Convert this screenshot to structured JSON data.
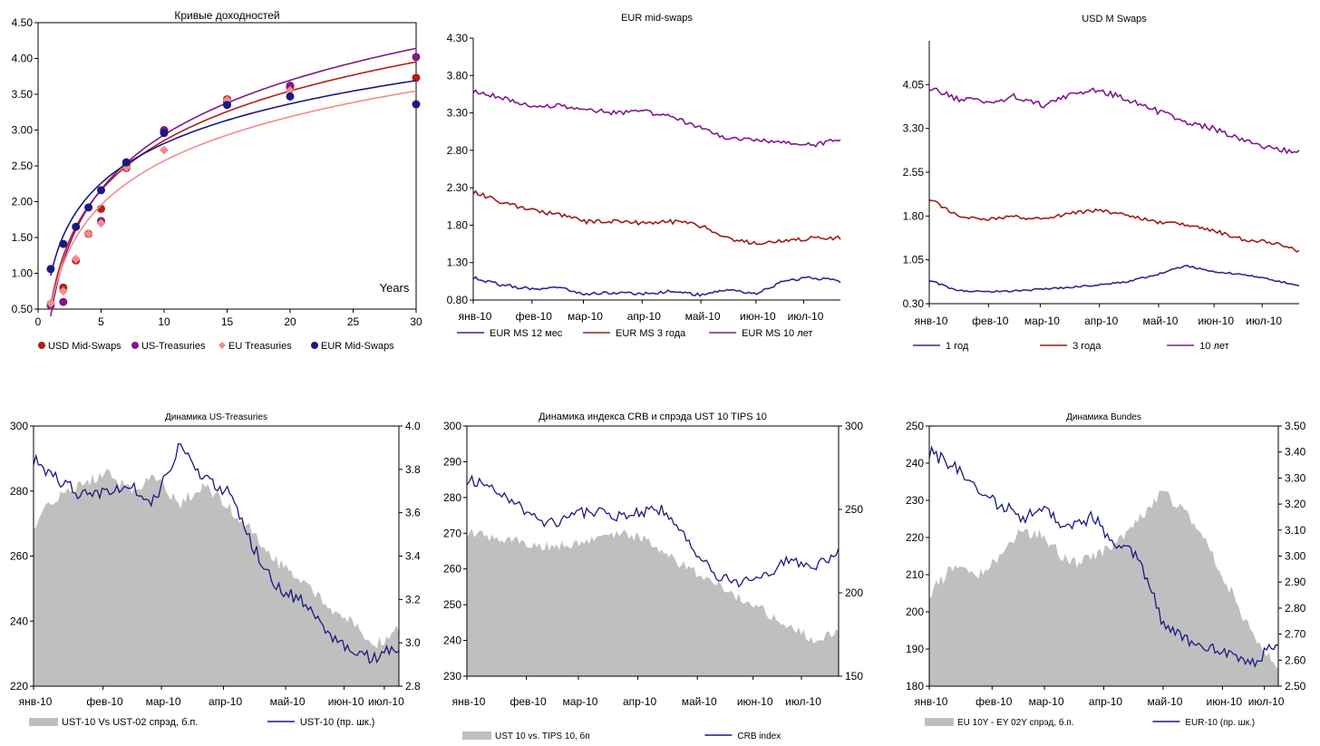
{
  "chart_data": [
    {
      "type": "scatter",
      "title": "Кривые доходностей",
      "xlabel": "Years",
      "ylabel": "",
      "xlim": [
        0,
        30
      ],
      "ylim": [
        0.5,
        4.5
      ],
      "x_ticks": [
        "0",
        "5",
        "10",
        "15",
        "20",
        "25",
        "30"
      ],
      "y_ticks": [
        "0.50",
        "1.00",
        "1.50",
        "2.00",
        "2.50",
        "3.00",
        "3.50",
        "4.00",
        "4.50"
      ],
      "legend_position": "bottom",
      "series": [
        {
          "name": "USD Mid-Swaps",
          "color": "#b0201a",
          "points": [
            [
              1,
              0.57
            ],
            [
              2,
              0.8
            ],
            [
              3,
              1.18
            ],
            [
              4,
              1.55
            ],
            [
              5,
              1.9
            ],
            [
              7,
              2.47
            ],
            [
              10,
              2.98
            ],
            [
              15,
              3.43
            ],
            [
              20,
              3.6
            ],
            [
              30,
              3.73
            ]
          ],
          "trend": {
            "a": 0.55,
            "b": 1.0
          }
        },
        {
          "name": "US-Treasuries",
          "color": "#7f1a8a",
          "points": [
            [
              1,
              0.55
            ],
            [
              2,
              0.6
            ],
            [
              5,
              1.73
            ],
            [
              7,
              2.5
            ],
            [
              10,
              3.0
            ],
            [
              15,
              3.39
            ],
            [
              20,
              3.62
            ],
            [
              30,
              4.02
            ]
          ],
          "trend": {
            "a": 0.4,
            "b": 1.1
          }
        },
        {
          "name": "EU Treasuries",
          "color": "#f28c8c",
          "points": [
            [
              1,
              0.58
            ],
            [
              2,
              0.75
            ],
            [
              3,
              1.2
            ],
            [
              4,
              1.55
            ],
            [
              5,
              1.7
            ],
            [
              7,
              2.48
            ],
            [
              10,
              2.72
            ],
            [
              15,
              3.42
            ],
            [
              20,
              3.55
            ]
          ],
          "trend": {
            "a": 0.52,
            "b": 0.89
          }
        },
        {
          "name": "EUR Mid-Swaps",
          "color": "#1a1a80",
          "points": [
            [
              1,
              1.06
            ],
            [
              2,
              1.41
            ],
            [
              3,
              1.65
            ],
            [
              4,
              1.92
            ],
            [
              5,
              2.16
            ],
            [
              7,
              2.55
            ],
            [
              10,
              2.96
            ],
            [
              15,
              3.35
            ],
            [
              20,
              3.47
            ],
            [
              30,
              3.36
            ]
          ],
          "trend": {
            "a": 0.97,
            "b": 0.8
          }
        }
      ]
    },
    {
      "type": "line",
      "title": "EUR mid-swaps",
      "ylim": [
        0.8,
        4.3
      ],
      "y_ticks": [
        "0.80",
        "1.30",
        "1.80",
        "2.30",
        "2.80",
        "3.30",
        "3.80",
        "4.30"
      ],
      "x_ticks": [
        "янв-10",
        "фев-10",
        "мар-10",
        "апр-10",
        "май-10",
        "июн-10",
        "июл-10"
      ],
      "legend_position": "bottom",
      "n_points": 150,
      "series": [
        {
          "name": "EUR MS 12 мес",
          "color": "#2b2b8c",
          "anchors": [
            1.1,
            1.0,
            0.95,
            0.97,
            0.88,
            0.9,
            0.88,
            0.92,
            0.87,
            0.95,
            0.88,
            1.05,
            1.1,
            1.05
          ],
          "noise": 0.02
        },
        {
          "name": "EUR MS 3 года",
          "color": "#a01c1c",
          "anchors": [
            2.25,
            2.1,
            2.0,
            1.95,
            1.85,
            1.86,
            1.82,
            1.85,
            1.8,
            1.62,
            1.55,
            1.6,
            1.62,
            1.63
          ],
          "noise": 0.03
        },
        {
          "name": "EUR MS 10 лет",
          "color": "#7d1c8a",
          "anchors": [
            3.6,
            3.5,
            3.4,
            3.4,
            3.35,
            3.3,
            3.32,
            3.25,
            3.1,
            2.95,
            2.95,
            2.9,
            2.87,
            2.95
          ],
          "noise": 0.03
        }
      ]
    },
    {
      "type": "line",
      "title": "USD M Swaps",
      "ylim": [
        0.3,
        4.8
      ],
      "y_ticks": [
        "0.30",
        "1.05",
        "1.80",
        "2.55",
        "3.30",
        "4.05"
      ],
      "x_ticks": [
        "янв-10",
        "фев-10",
        "мар-10",
        "апр-10",
        "май-10",
        "июн-10",
        "июл-10"
      ],
      "legend_position": "bottom",
      "n_points": 150,
      "series": [
        {
          "name": "1 год",
          "color": "#2b2b8c",
          "anchors": [
            0.7,
            0.52,
            0.5,
            0.52,
            0.55,
            0.58,
            0.62,
            0.68,
            0.8,
            0.95,
            0.85,
            0.8,
            0.72,
            0.6
          ],
          "noise": 0.015
        },
        {
          "name": "3 года",
          "color": "#a01c1c",
          "anchors": [
            2.1,
            1.8,
            1.75,
            1.78,
            1.75,
            1.85,
            1.9,
            1.8,
            1.7,
            1.65,
            1.55,
            1.4,
            1.35,
            1.2
          ],
          "noise": 0.03
        },
        {
          "name": "10 лет",
          "color": "#7d1c8a",
          "anchors": [
            4.0,
            3.8,
            3.75,
            3.85,
            3.7,
            3.9,
            3.95,
            3.8,
            3.6,
            3.4,
            3.3,
            3.1,
            2.95,
            2.9
          ],
          "noise": 0.05
        }
      ]
    },
    {
      "type": "area",
      "title": "Динамика US-Treasuries",
      "ylim": [
        220,
        300
      ],
      "y_ticks": [
        "220",
        "240",
        "260",
        "280",
        "300"
      ],
      "y2lim": [
        2.8,
        4.0
      ],
      "y2_ticks": [
        "2.8",
        "3.0",
        "3.2",
        "3.4",
        "3.6",
        "3.8",
        "4.0"
      ],
      "x_ticks": [
        "янв-10",
        "фев-10",
        "мар-10",
        "апр-10",
        "май-10",
        "июн-10",
        "июл-10"
      ],
      "legend_position": "bottom",
      "n_points": 150,
      "series": [
        {
          "name": "UST-10 Vs UST-02 спрэд, б.п.",
          "color": "#bfbfbf",
          "kind": "area",
          "axis": "left",
          "anchors": [
            270,
            278,
            282,
            285,
            280,
            284,
            276,
            282,
            275,
            268,
            258,
            252,
            245,
            240,
            232,
            238
          ],
          "noise": 2.0
        },
        {
          "name": "UST-10 (пр. шк.)",
          "color": "#1a1a7e",
          "kind": "line",
          "axis": "right",
          "anchors": [
            3.85,
            3.75,
            3.68,
            3.7,
            3.72,
            3.65,
            3.92,
            3.75,
            3.7,
            3.45,
            3.25,
            3.2,
            3.05,
            2.95,
            2.93,
            2.98
          ],
          "noise": 0.03
        }
      ]
    },
    {
      "type": "area",
      "title": "Динамика индекса CRB и спрэда UST 10 TIPS 10",
      "ylim": [
        230,
        300
      ],
      "y_ticks": [
        "230",
        "240",
        "250",
        "260",
        "270",
        "280",
        "290",
        "300"
      ],
      "y2lim": [
        150,
        300
      ],
      "y2_ticks": [
        "150",
        "200",
        "250",
        "300"
      ],
      "x_ticks": [
        "янв-10",
        "фев-10",
        "мар-10",
        "апр-10",
        "май-10",
        "июн-10",
        "июл-10"
      ],
      "legend_position": "bottom",
      "n_points": 150,
      "series": [
        {
          "name": "UST 10 vs. TIPS 10, бп",
          "color": "#bfbfbf",
          "kind": "area",
          "axis": "left",
          "anchors": [
            270,
            269,
            268,
            266,
            267,
            268,
            270,
            269,
            264,
            260,
            256,
            252,
            248,
            244,
            240,
            242
          ],
          "noise": 1.5
        },
        {
          "name": "CRB index",
          "color": "#1a1a7e",
          "kind": "line",
          "axis": "right",
          "anchors": [
            268,
            262,
            255,
            240,
            245,
            250,
            245,
            248,
            250,
            230,
            210,
            205,
            210,
            220,
            215,
            225
          ],
          "noise": 3.5
        }
      ]
    },
    {
      "type": "area",
      "title": "Динамика Bundes",
      "ylim": [
        180,
        250
      ],
      "y_ticks": [
        "180",
        "190",
        "200",
        "210",
        "220",
        "230",
        "240",
        "250"
      ],
      "y2lim": [
        2.5,
        3.5
      ],
      "y2_ticks": [
        "2.50",
        "2.60",
        "2.70",
        "2.80",
        "2.90",
        "3.00",
        "3.10",
        "3.20",
        "3.30",
        "3.40",
        "3.50"
      ],
      "x_ticks": [
        "янв-10",
        "фев-10",
        "мар-10",
        "апр-10",
        "май-10",
        "июн-10",
        "июл-10"
      ],
      "legend_position": "bottom",
      "n_points": 150,
      "series": [
        {
          "name": "EU 10Y - EY 02Y спрэд, б.п.",
          "color": "#bfbfbf",
          "kind": "area",
          "axis": "left",
          "anchors": [
            205,
            212,
            210,
            215,
            222,
            220,
            213,
            215,
            218,
            225,
            232,
            228,
            218,
            205,
            192,
            186
          ],
          "noise": 1.8
        },
        {
          "name": "EUR-10 (пр. шк.)",
          "color": "#1a1a7e",
          "kind": "line",
          "axis": "right",
          "anchors": [
            3.4,
            3.35,
            3.25,
            3.2,
            3.15,
            3.18,
            3.1,
            3.15,
            3.05,
            3.0,
            2.75,
            2.68,
            2.65,
            2.62,
            2.6,
            2.67
          ],
          "noise": 0.025
        }
      ]
    }
  ]
}
